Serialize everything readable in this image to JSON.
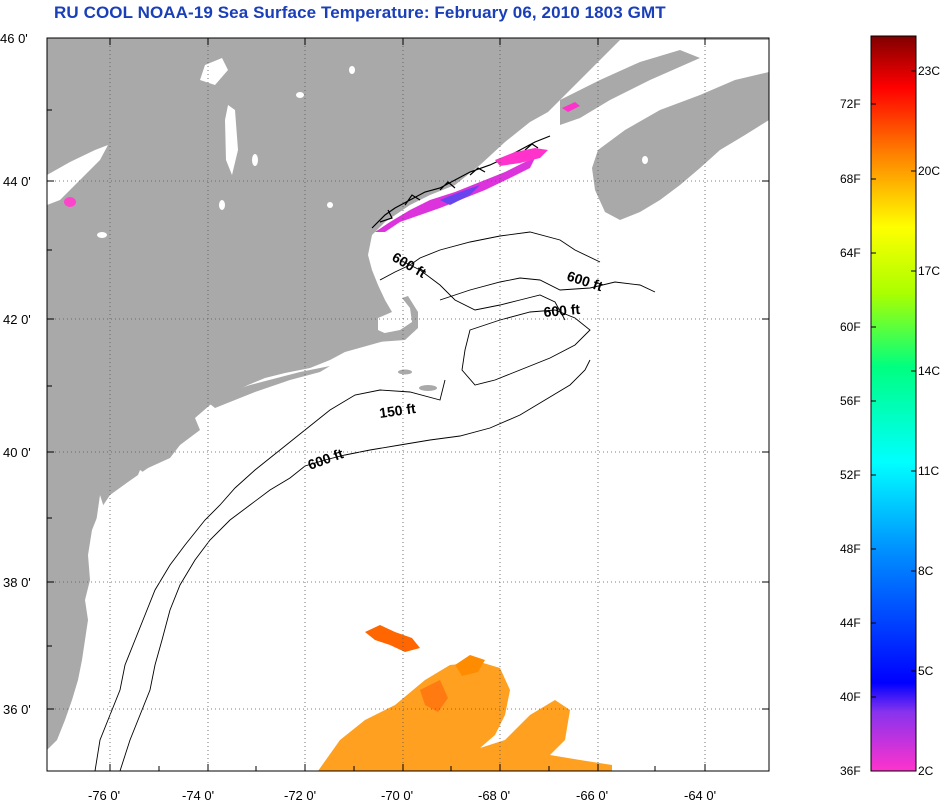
{
  "title": "RU COOL  NOAA-19  Sea Surface Temperature:  February 06, 2010 1803 GMT",
  "map": {
    "lat_labels": [
      "46 0'",
      "44 0'",
      "42 0'",
      "40 0'",
      "38 0'",
      "36 0'"
    ],
    "lon_labels": [
      "-76 0'",
      "-74 0'",
      "-72 0'",
      "-70 0'",
      "-68 0'",
      "-66 0'",
      "-64 0'"
    ],
    "contour_labels": [
      "600 ft",
      "600 ft",
      "600 ft",
      "150 ft",
      "600 ft"
    ],
    "land_color": "#a9a9a9",
    "ocean_color": "#ffffff",
    "grid": "dotted"
  },
  "colorbar": {
    "fahrenheit_labels": [
      "72F",
      "68F",
      "64F",
      "60F",
      "56F",
      "52F",
      "48F",
      "44F",
      "40F",
      "36F"
    ],
    "celsius_labels": [
      "23C",
      "20C",
      "17C",
      "14C",
      "11C",
      "8C",
      "5C",
      "2C"
    ],
    "colors": [
      "#800000",
      "#ff0000",
      "#ff8000",
      "#ffff00",
      "#00ff80",
      "#00ffff",
      "#0080ff",
      "#0000ff",
      "#8000ff",
      "#ff00ff"
    ]
  }
}
